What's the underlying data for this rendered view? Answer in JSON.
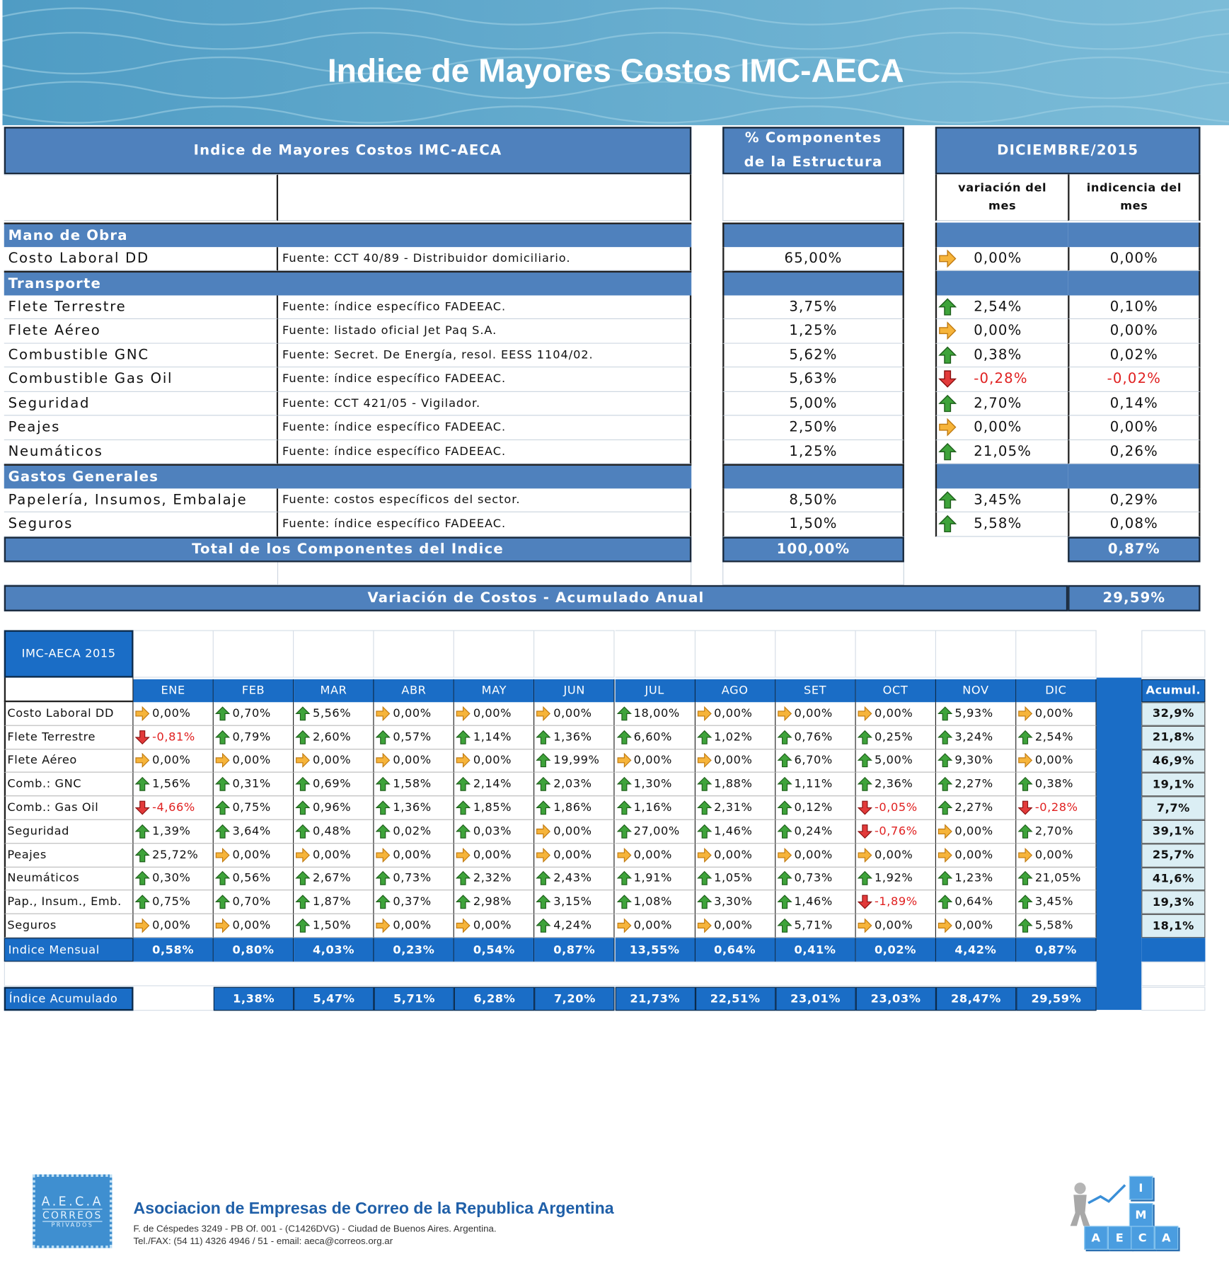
{
  "header": {
    "title": "Indice de Mayores Costos IMC-AECA"
  },
  "top_table": {
    "header": {
      "title": "Indice de Mayores Costos  IMC-AECA",
      "structure": [
        "% Componentes",
        "de la Estructura"
      ],
      "period": "DICIEMBRE/2015",
      "variation": "variación del mes",
      "incidence": "indicencia del mes"
    },
    "sections": [
      {
        "name": "Mano de Obra",
        "rows": [
          [
            "Costo Laboral DD",
            "Fuente: CCT 40/89 - Distribuidor domiciliario.",
            "65,00%",
            "0,00%",
            "0,00%"
          ]
        ]
      },
      {
        "name": "Transporte",
        "rows": [
          [
            "Flete Terrestre",
            "Fuente: índice específico FADEEAC.",
            "3,75%",
            "2,54%",
            "0,10%"
          ],
          [
            "Flete Aéreo",
            "Fuente: listado oficial Jet Paq S.A.",
            "1,25%",
            "0,00%",
            "0,00%"
          ],
          [
            "Combustible GNC",
            "Fuente: Secret. De Energía, resol. EESS 1104/02.",
            "5,62%",
            "0,38%",
            "0,02%"
          ],
          [
            "Combustible Gas Oil",
            "Fuente: índice específico FADEEAC.",
            "5,63%",
            "-0,28%",
            "-0,02%"
          ],
          [
            "Seguridad",
            "Fuente: CCT 421/05 - Vigilador.",
            "5,00%",
            "2,70%",
            "0,14%"
          ],
          [
            "Peajes",
            "Fuente: índice específico FADEEAC.",
            "2,50%",
            "0,00%",
            "0,00%"
          ],
          [
            "Neumáticos",
            "Fuente: índice específico FADEEAC.",
            "1,25%",
            "21,05%",
            "0,26%"
          ]
        ]
      },
      {
        "name": "Gastos Generales",
        "rows": [
          [
            "Papelería, Insumos, Embalaje",
            "Fuente: costos específicos del sector.",
            "8,50%",
            "3,45%",
            "0,29%"
          ],
          [
            "Seguros",
            "Fuente: índice específico FADEEAC.",
            "1,50%",
            "5,58%",
            "0,08%"
          ]
        ]
      }
    ],
    "total": {
      "label": "Total de los Componentes del Indice",
      "structure": "100,00%",
      "incidence": "0,87%"
    },
    "annual": {
      "label": "Variación de Costos - Acumulado Anual",
      "value": "29,59%"
    }
  },
  "monthly": {
    "title": "IMC-AECA 2015",
    "months": [
      "ENE",
      "FEB",
      "MAR",
      "ABR",
      "MAY",
      "JUN",
      "JUL",
      "AGO",
      "SET",
      "OCT",
      "NOV",
      "DIC"
    ],
    "total_header": "Acumul.",
    "rows": [
      {
        "name": "Costo Laboral DD",
        "values": [
          "0,00%",
          "0,70%",
          "5,56%",
          "0,00%",
          "0,00%",
          "0,00%",
          "18,00%",
          "0,00%",
          "0,00%",
          "0,00%",
          "5,93%",
          "0,00%"
        ],
        "total": "32,9%"
      },
      {
        "name": "Flete Terrestre",
        "values": [
          "-0,81%",
          "0,79%",
          "2,60%",
          "0,57%",
          "1,14%",
          "1,36%",
          "6,60%",
          "1,02%",
          "0,76%",
          "0,25%",
          "3,24%",
          "2,54%"
        ],
        "total": "21,8%"
      },
      {
        "name": "Flete Aéreo",
        "values": [
          "0,00%",
          "0,00%",
          "0,00%",
          "0,00%",
          "0,00%",
          "19,99%",
          "0,00%",
          "0,00%",
          "6,70%",
          "5,00%",
          "9,30%",
          "0,00%"
        ],
        "total": "46,9%"
      },
      {
        "name": "Comb.: GNC",
        "values": [
          "1,56%",
          "0,31%",
          "0,69%",
          "1,58%",
          "2,14%",
          "2,03%",
          "1,30%",
          "1,88%",
          "1,11%",
          "2,36%",
          "2,27%",
          "0,38%"
        ],
        "total": "19,1%"
      },
      {
        "name": "Comb.: Gas Oil",
        "values": [
          "-4,66%",
          "0,75%",
          "0,96%",
          "1,36%",
          "1,85%",
          "1,86%",
          "1,16%",
          "2,31%",
          "0,12%",
          "-0,05%",
          "2,27%",
          "-0,28%"
        ],
        "total": "7,7%"
      },
      {
        "name": "Seguridad",
        "values": [
          "1,39%",
          "3,64%",
          "0,48%",
          "0,02%",
          "0,03%",
          "0,00%",
          "27,00%",
          "1,46%",
          "0,24%",
          "-0,76%",
          "0,00%",
          "2,70%"
        ],
        "total": "39,1%"
      },
      {
        "name": "Peajes",
        "values": [
          "25,72%",
          "0,00%",
          "0,00%",
          "0,00%",
          "0,00%",
          "0,00%",
          "0,00%",
          "0,00%",
          "0,00%",
          "0,00%",
          "0,00%",
          "0,00%"
        ],
        "total": "25,7%"
      },
      {
        "name": "Neumáticos",
        "values": [
          "0,30%",
          "0,56%",
          "2,67%",
          "0,73%",
          "2,32%",
          "2,43%",
          "1,91%",
          "1,05%",
          "0,73%",
          "1,92%",
          "1,23%",
          "21,05%"
        ],
        "total": "41,6%"
      },
      {
        "name": "Pap., Insum., Emb.",
        "values": [
          "0,75%",
          "0,70%",
          "1,87%",
          "0,37%",
          "2,98%",
          "3,15%",
          "1,08%",
          "3,30%",
          "1,46%",
          "-1,89%",
          "0,64%",
          "3,45%"
        ],
        "total": "19,3%"
      },
      {
        "name": "Seguros",
        "values": [
          "0,00%",
          "0,00%",
          "1,50%",
          "0,00%",
          "0,00%",
          "4,24%",
          "0,00%",
          "0,00%",
          "5,71%",
          "0,00%",
          "0,00%",
          "5,58%"
        ],
        "total": "18,1%"
      }
    ],
    "monthly_index": {
      "label": "Indice Mensual",
      "values": [
        "0,58%",
        "0,80%",
        "4,03%",
        "0,23%",
        "0,54%",
        "0,87%",
        "13,55%",
        "0,64%",
        "0,41%",
        "0,02%",
        "4,42%",
        "0,87%"
      ]
    },
    "cumulative_index": {
      "label": "Índice Acumulado",
      "values": [
        null,
        "1,38%",
        "5,47%",
        "5,71%",
        "6,28%",
        "7,20%",
        "21,73%",
        "22,51%",
        "23,01%",
        "23,03%",
        "28,47%",
        "29,59%"
      ]
    }
  },
  "footer": {
    "logo": [
      "A.E.C.A",
      "CORREOS",
      "PRIVADOS"
    ],
    "organization": "Asociacion de Empresas de Correo de la Republica Argentina",
    "address": "F. de Céspedes 3249 - PB Of. 001 - (C1426DVG) - Ciudad de Buenos Aires. Argentina.",
    "contact": "Tel./FAX: (54 11) 4326 4946 / 51 - email: aeca@correos.org.ar",
    "imc_logo": [
      "I",
      "M",
      "A",
      "E",
      "C",
      "A"
    ]
  }
}
